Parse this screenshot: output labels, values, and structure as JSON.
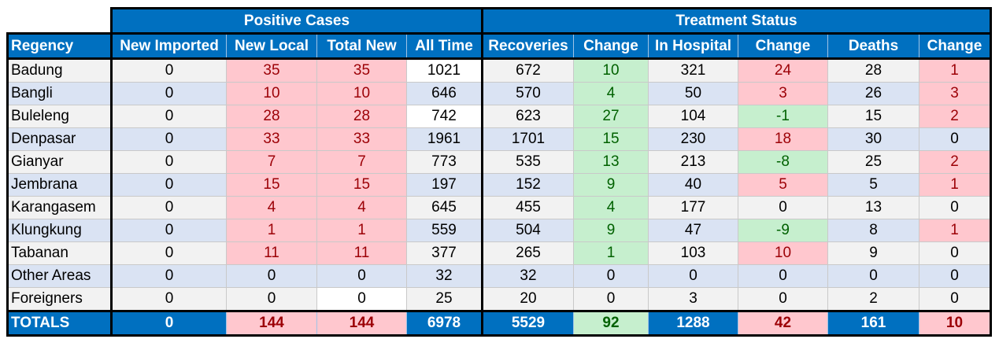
{
  "group_headers": {
    "positive": "Positive Cases",
    "treatment": "Treatment Status"
  },
  "columns": [
    "Regency",
    "New Imported",
    "New Local",
    "Total New",
    "All Time",
    "Recoveries",
    "Change",
    "In Hospital",
    "Change",
    "Deaths",
    "Change"
  ],
  "rows": [
    {
      "regency": "Badung",
      "new_imported": "0",
      "new_local": "35",
      "total_new": "35",
      "all_time": "1021",
      "recoveries": "672",
      "rec_change": "10",
      "in_hospital": "321",
      "hosp_change": "24",
      "deaths": "28",
      "death_change": "1"
    },
    {
      "regency": "Bangli",
      "new_imported": "0",
      "new_local": "10",
      "total_new": "10",
      "all_time": "646",
      "recoveries": "570",
      "rec_change": "4",
      "in_hospital": "50",
      "hosp_change": "3",
      "deaths": "26",
      "death_change": "3"
    },
    {
      "regency": "Buleleng",
      "new_imported": "0",
      "new_local": "28",
      "total_new": "28",
      "all_time": "742",
      "recoveries": "623",
      "rec_change": "27",
      "in_hospital": "104",
      "hosp_change": "-1",
      "deaths": "15",
      "death_change": "2"
    },
    {
      "regency": "Denpasar",
      "new_imported": "0",
      "new_local": "33",
      "total_new": "33",
      "all_time": "1961",
      "recoveries": "1701",
      "rec_change": "15",
      "in_hospital": "230",
      "hosp_change": "18",
      "deaths": "30",
      "death_change": "0"
    },
    {
      "regency": "Gianyar",
      "new_imported": "0",
      "new_local": "7",
      "total_new": "7",
      "all_time": "773",
      "recoveries": "535",
      "rec_change": "13",
      "in_hospital": "213",
      "hosp_change": "-8",
      "deaths": "25",
      "death_change": "2"
    },
    {
      "regency": "Jembrana",
      "new_imported": "0",
      "new_local": "15",
      "total_new": "15",
      "all_time": "197",
      "recoveries": "152",
      "rec_change": "9",
      "in_hospital": "40",
      "hosp_change": "5",
      "deaths": "5",
      "death_change": "1"
    },
    {
      "regency": "Karangasem",
      "new_imported": "0",
      "new_local": "4",
      "total_new": "4",
      "all_time": "645",
      "recoveries": "455",
      "rec_change": "4",
      "in_hospital": "177",
      "hosp_change": "0",
      "deaths": "13",
      "death_change": "0"
    },
    {
      "regency": "Klungkung",
      "new_imported": "0",
      "new_local": "1",
      "total_new": "1",
      "all_time": "559",
      "recoveries": "504",
      "rec_change": "9",
      "in_hospital": "47",
      "hosp_change": "-9",
      "deaths": "8",
      "death_change": "1"
    },
    {
      "regency": "Tabanan",
      "new_imported": "0",
      "new_local": "11",
      "total_new": "11",
      "all_time": "377",
      "recoveries": "265",
      "rec_change": "1",
      "in_hospital": "103",
      "hosp_change": "10",
      "deaths": "9",
      "death_change": "0"
    },
    {
      "regency": "Other Areas",
      "new_imported": "0",
      "new_local": "0",
      "total_new": "0",
      "all_time": "32",
      "recoveries": "32",
      "rec_change": "0",
      "in_hospital": "0",
      "hosp_change": "0",
      "deaths": "0",
      "death_change": "0"
    },
    {
      "regency": "Foreigners",
      "new_imported": "0",
      "new_local": "0",
      "total_new": "0",
      "all_time": "25",
      "recoveries": "20",
      "rec_change": "0",
      "in_hospital": "3",
      "hosp_change": "0",
      "deaths": "2",
      "death_change": "0"
    }
  ],
  "totals": {
    "regency": "TOTALS",
    "new_imported": "0",
    "new_local": "144",
    "total_new": "144",
    "all_time": "6978",
    "recoveries": "5529",
    "rec_change": "92",
    "in_hospital": "1288",
    "hosp_change": "42",
    "deaths": "161",
    "death_change": "10"
  },
  "colors": {
    "header_blue": "#0070c0",
    "highlight_red_bg": "#ffc7ce",
    "highlight_red_text": "#9c0006",
    "highlight_green_bg": "#c6efce",
    "highlight_green_text": "#006100",
    "row_odd": "#f2f2f2",
    "row_even": "#dae3f3"
  }
}
